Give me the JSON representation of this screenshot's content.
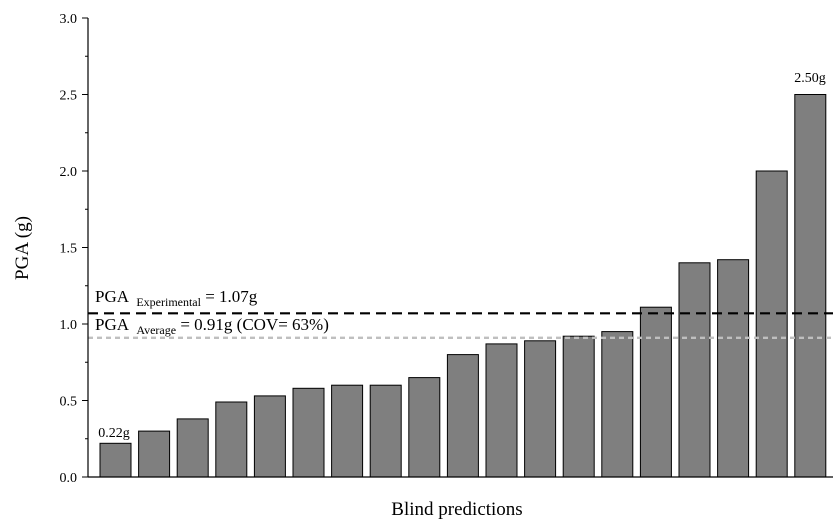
{
  "chart_data": {
    "type": "bar",
    "xlabel": "Blind predictions",
    "ylabel": "PGA (g)",
    "ylim": [
      0,
      3.0
    ],
    "yticks": [
      "0.0",
      "0.5",
      "1.0",
      "1.5",
      "2.0",
      "2.5",
      "3.0"
    ],
    "values": [
      0.22,
      0.3,
      0.38,
      0.49,
      0.53,
      0.58,
      0.6,
      0.6,
      0.65,
      0.8,
      0.87,
      0.89,
      0.92,
      0.95,
      1.11,
      1.4,
      1.42,
      2.0,
      2.5
    ],
    "bar_color": "#7f7f7f",
    "data_labels": {
      "first": "0.22g",
      "last": "2.50g"
    },
    "reference_lines": [
      {
        "value": 1.07,
        "style": "dashed",
        "color": "#000000",
        "label_main": "PGA",
        "label_sub": "Experimental",
        "label_tail": " = 1.07g"
      },
      {
        "value": 0.91,
        "style": "dashed",
        "color": "#bfbfbf",
        "label_main": "PGA",
        "label_sub": "Average",
        "label_tail": " = 0.91g (COV= 63%)"
      }
    ]
  }
}
